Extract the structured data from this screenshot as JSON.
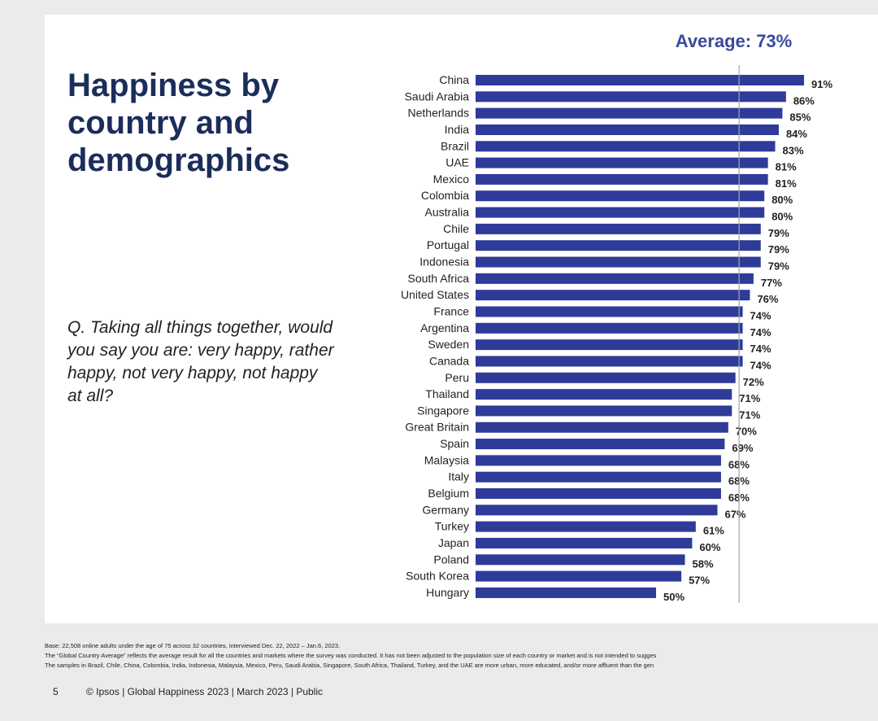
{
  "slide": {
    "title": "Happiness by country and demographics",
    "question": "Q. Taking all things together, would you say you are: very happy, rather happy, not very happy, not happy at all?",
    "average_label": "Average: 73%"
  },
  "chart_data": {
    "type": "bar",
    "orientation": "horizontal",
    "title": "",
    "average_line_value": 73,
    "average_label": "Average: 73%",
    "xlim": [
      0,
      100
    ],
    "value_suffix": "%",
    "bar_color": "#2e3b98",
    "categories": [
      "China",
      "Saudi Arabia",
      "Netherlands",
      "India",
      "Brazil",
      "UAE",
      "Mexico",
      "Colombia",
      "Australia",
      "Chile",
      "Portugal",
      "Indonesia",
      "South Africa",
      "United States",
      "France",
      "Argentina",
      "Sweden",
      "Canada",
      "Peru",
      "Thailand",
      "Singapore",
      "Great Britain",
      "Spain",
      "Malaysia",
      "Italy",
      "Belgium",
      "Germany",
      "Turkey",
      "Japan",
      "Poland",
      "South Korea",
      "Hungary"
    ],
    "values": [
      91,
      86,
      85,
      84,
      83,
      81,
      81,
      80,
      80,
      79,
      79,
      79,
      77,
      76,
      74,
      74,
      74,
      74,
      72,
      71,
      71,
      70,
      69,
      68,
      68,
      68,
      67,
      61,
      60,
      58,
      57,
      50
    ]
  },
  "footer": {
    "base_note": "Base: 22,508 online adults under the age of 75 across 32 countries, interviewed Dec. 22, 2022 – Jan.6, 2023.",
    "average_note": "The “Global Country Average” reflects the average result for all the countries and markets where the survey was conducted. It has not been adjusted to the population size of each country or market and is not intended to sugges",
    "sample_note": "The samples in Brazil, Chile, China, Colombia, India, Indonesia, Malaysia, Mexico, Peru, Saudi Arabia, Singapore, South Africa, Thailand, Turkey, and the UAE are more urban, more educated, and/or more affluent than the gen",
    "page_number": "5",
    "copyright": "© Ipsos | Global Happiness 2023 | March 2023 | Public"
  }
}
